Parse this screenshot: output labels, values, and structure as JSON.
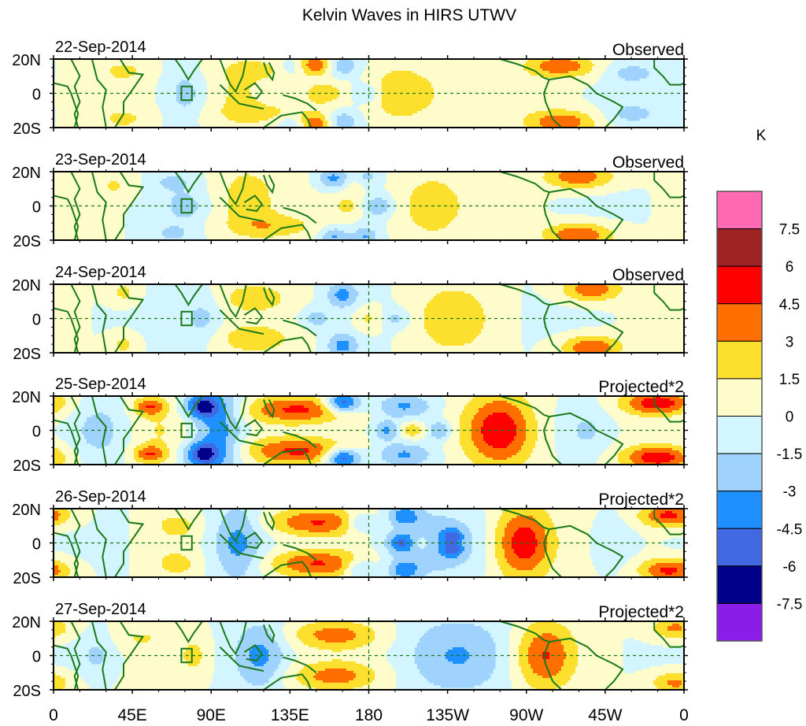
{
  "chart_data": {
    "type": "heatmap",
    "title": "Kelvin Waves in HIRS UTWV",
    "units_label": "K",
    "xlabel": "",
    "ylabel": "",
    "x_range_deg_lon": [
      0,
      360
    ],
    "y_range_deg_lat": [
      -20,
      20
    ],
    "x_tick_labels": [
      "0",
      "45E",
      "90E",
      "135E",
      "180",
      "135W",
      "90W",
      "45W",
      "0"
    ],
    "x_tick_values": [
      0,
      45,
      90,
      135,
      180,
      225,
      270,
      315,
      360
    ],
    "y_tick_labels": [
      "20N",
      "0",
      "20S"
    ],
    "y_tick_values": [
      20,
      0,
      -20
    ],
    "reference_lines": {
      "equator_dashed": true,
      "dateline_dashed": true
    },
    "colorbar": {
      "levels": [
        -7.5,
        -6,
        -4.5,
        -3,
        -1.5,
        0,
        1.5,
        3,
        4.5,
        6,
        7.5
      ],
      "level_labels": [
        "-7.5",
        "-6",
        "-4.5",
        "-3",
        "-1.5",
        "0",
        "1.5",
        "3",
        "4.5",
        "6",
        "7.5"
      ],
      "colors_low_to_high": [
        "#8a1ee8",
        "#00008b",
        "#4169e1",
        "#1e90ff",
        "#9fd2fc",
        "#d3f5ff",
        "#fffccb",
        "#fde02e",
        "#ff6f00",
        "#ff0000",
        "#a02323",
        "#ff69b4"
      ]
    },
    "coastline_color": "#1a7a1a",
    "panels": [
      {
        "date": "22-Sep-2014",
        "label": "Observed",
        "features": [
          {
            "lon": 155,
            "lat": 0,
            "amp": 2.0,
            "sx": 9,
            "sy": 5
          },
          {
            "lon": 178,
            "lat": 0,
            "amp": -2.4,
            "sx": 6,
            "sy": 4
          },
          {
            "lon": 197,
            "lat": 0,
            "amp": 2.8,
            "sx": 12,
            "sy": 12
          },
          {
            "lon": 230,
            "lat": 8,
            "amp": 1.2,
            "sx": 18,
            "sy": 8
          },
          {
            "lon": 230,
            "lat": -8,
            "amp": 1.2,
            "sx": 18,
            "sy": 8
          },
          {
            "lon": 105,
            "lat": 0,
            "amp": 2.0,
            "sx": 10,
            "sy": 12
          },
          {
            "lon": 120,
            "lat": -12,
            "amp": 1.8,
            "sx": 20,
            "sy": 5
          },
          {
            "lon": 120,
            "lat": 14,
            "amp": 1.8,
            "sx": 18,
            "sy": 5
          },
          {
            "lon": 75,
            "lat": 0,
            "amp": -2.0,
            "sx": 6,
            "sy": 8
          },
          {
            "lon": 150,
            "lat": 17,
            "amp": 4.0,
            "sx": 6,
            "sy": 4
          },
          {
            "lon": 150,
            "lat": -18,
            "amp": 4.0,
            "sx": 6,
            "sy": 4
          },
          {
            "lon": 165,
            "lat": 16,
            "amp": -2.6,
            "sx": 7,
            "sy": 5
          },
          {
            "lon": 165,
            "lat": -16,
            "amp": -2.6,
            "sx": 7,
            "sy": 5
          },
          {
            "lon": 135,
            "lat": 15,
            "amp": -2.0,
            "sx": 6,
            "sy": 4
          },
          {
            "lon": 135,
            "lat": -18,
            "amp": -2.0,
            "sx": 6,
            "sy": 4
          },
          {
            "lon": 290,
            "lat": 16,
            "amp": 4.0,
            "sx": 14,
            "sy": 5
          },
          {
            "lon": 290,
            "lat": -17,
            "amp": 4.2,
            "sx": 14,
            "sy": 5
          },
          {
            "lon": 40,
            "lat": 13,
            "amp": 2.0,
            "sx": 8,
            "sy": 4
          },
          {
            "lon": 40,
            "lat": -15,
            "amp": 2.0,
            "sx": 8,
            "sy": 4
          },
          {
            "lon": 330,
            "lat": 12,
            "amp": -2.0,
            "sx": 10,
            "sy": 4
          },
          {
            "lon": 330,
            "lat": -12,
            "amp": -2.0,
            "sx": 10,
            "sy": 4
          }
        ]
      },
      {
        "date": "23-Sep-2014",
        "label": "Observed",
        "features": [
          {
            "lon": 168,
            "lat": 0,
            "amp": 2.0,
            "sx": 7,
            "sy": 5
          },
          {
            "lon": 185,
            "lat": 0,
            "amp": -2.8,
            "sx": 6,
            "sy": 4
          },
          {
            "lon": 215,
            "lat": 0,
            "amp": 2.6,
            "sx": 14,
            "sy": 14
          },
          {
            "lon": 110,
            "lat": 5,
            "amp": 2.2,
            "sx": 12,
            "sy": 14
          },
          {
            "lon": 125,
            "lat": -12,
            "amp": 2.2,
            "sx": 18,
            "sy": 5
          },
          {
            "lon": 75,
            "lat": 0,
            "amp": -2.0,
            "sx": 8,
            "sy": 6
          },
          {
            "lon": 68,
            "lat": 14,
            "amp": -1.8,
            "sx": 8,
            "sy": 4
          },
          {
            "lon": 68,
            "lat": -16,
            "amp": -1.8,
            "sx": 8,
            "sy": 4
          },
          {
            "lon": 160,
            "lat": 16,
            "amp": -3.5,
            "sx": 6,
            "sy": 4
          },
          {
            "lon": 160,
            "lat": -18,
            "amp": -3.2,
            "sx": 6,
            "sy": 4
          },
          {
            "lon": 178,
            "lat": 16,
            "amp": -3.0,
            "sx": 5,
            "sy": 4
          },
          {
            "lon": 178,
            "lat": -18,
            "amp": -3.0,
            "sx": 5,
            "sy": 4
          },
          {
            "lon": 175,
            "lat": 14,
            "amp": 2.0,
            "sx": 6,
            "sy": 4
          },
          {
            "lon": 300,
            "lat": 17,
            "amp": 4.3,
            "sx": 14,
            "sy": 5
          },
          {
            "lon": 300,
            "lat": -17,
            "amp": 4.6,
            "sx": 14,
            "sy": 5
          },
          {
            "lon": 35,
            "lat": 12,
            "amp": 1.6,
            "sx": 8,
            "sy": 5
          }
        ]
      },
      {
        "date": "24-Sep-2014",
        "label": "Observed",
        "features": [
          {
            "lon": 180,
            "lat": 0,
            "amp": 2.0,
            "sx": 6,
            "sy": 5
          },
          {
            "lon": 195,
            "lat": 0,
            "amp": -2.0,
            "sx": 6,
            "sy": 4
          },
          {
            "lon": 228,
            "lat": 0,
            "amp": 2.6,
            "sx": 15,
            "sy": 14
          },
          {
            "lon": 115,
            "lat": 12,
            "amp": 2.4,
            "sx": 14,
            "sy": 6
          },
          {
            "lon": 115,
            "lat": -12,
            "amp": 2.4,
            "sx": 16,
            "sy": 6
          },
          {
            "lon": 85,
            "lat": 0,
            "amp": -2.0,
            "sx": 8,
            "sy": 10
          },
          {
            "lon": 165,
            "lat": 14,
            "amp": -3.5,
            "sx": 6,
            "sy": 5
          },
          {
            "lon": 165,
            "lat": -16,
            "amp": -3.5,
            "sx": 6,
            "sy": 5
          },
          {
            "lon": 150,
            "lat": 0,
            "amp": -2.0,
            "sx": 6,
            "sy": 4
          },
          {
            "lon": 307,
            "lat": 17,
            "amp": 4.3,
            "sx": 12,
            "sy": 5
          },
          {
            "lon": 307,
            "lat": -17,
            "amp": 4.6,
            "sx": 12,
            "sy": 5
          },
          {
            "lon": 40,
            "lat": 15,
            "amp": 2.0,
            "sx": 6,
            "sy": 5
          },
          {
            "lon": 40,
            "lat": -15,
            "amp": 2.0,
            "sx": 6,
            "sy": 5
          }
        ]
      },
      {
        "date": "25-Sep-2014",
        "label": "Projected*2",
        "features": [
          {
            "lon": 255,
            "lat": 0,
            "amp": 6.0,
            "sx": 14,
            "sy": 15
          },
          {
            "lon": 205,
            "lat": 0,
            "amp": 2.4,
            "sx": 5,
            "sy": 3
          },
          {
            "lon": 190,
            "lat": 0,
            "amp": -3.5,
            "sx": 5,
            "sy": 4
          },
          {
            "lon": 220,
            "lat": 0,
            "amp": -3.5,
            "sx": 5,
            "sy": 4
          },
          {
            "lon": 200,
            "lat": 14,
            "amp": -3.5,
            "sx": 12,
            "sy": 5
          },
          {
            "lon": 200,
            "lat": -14,
            "amp": -3.5,
            "sx": 12,
            "sy": 5
          },
          {
            "lon": 140,
            "lat": 12,
            "amp": 5.0,
            "sx": 22,
            "sy": 6
          },
          {
            "lon": 140,
            "lat": -12,
            "amp": 5.0,
            "sx": 22,
            "sy": 6
          },
          {
            "lon": 165,
            "lat": 16,
            "amp": -6.5,
            "sx": 7,
            "sy": 4
          },
          {
            "lon": 165,
            "lat": -16,
            "amp": -6.5,
            "sx": 7,
            "sy": 4
          },
          {
            "lon": 95,
            "lat": 0,
            "amp": -4.0,
            "sx": 10,
            "sy": 20
          },
          {
            "lon": 85,
            "lat": 14,
            "amp": -5.5,
            "sx": 7,
            "sy": 5
          },
          {
            "lon": 85,
            "lat": -14,
            "amp": -5.5,
            "sx": 7,
            "sy": 5
          },
          {
            "lon": 55,
            "lat": 14,
            "amp": 4.5,
            "sx": 7,
            "sy": 4
          },
          {
            "lon": 55,
            "lat": -14,
            "amp": 4.5,
            "sx": 7,
            "sy": 4
          },
          {
            "lon": 60,
            "lat": 0,
            "amp": 1.6,
            "sx": 10,
            "sy": 8
          },
          {
            "lon": 345,
            "lat": 16,
            "amp": 5.5,
            "sx": 14,
            "sy": 5
          },
          {
            "lon": 345,
            "lat": -16,
            "amp": 5.5,
            "sx": 14,
            "sy": 5
          },
          {
            "lon": 305,
            "lat": 0,
            "amp": -1.8,
            "sx": 10,
            "sy": 10
          },
          {
            "lon": 25,
            "lat": 0,
            "amp": -1.8,
            "sx": 10,
            "sy": 12
          }
        ]
      },
      {
        "date": "26-Sep-2014",
        "label": "Projected*2",
        "features": [
          {
            "lon": 268,
            "lat": 0,
            "amp": 5.8,
            "sx": 12,
            "sy": 15
          },
          {
            "lon": 215,
            "lat": 0,
            "amp": -3.0,
            "sx": 20,
            "sy": 14
          },
          {
            "lon": 198,
            "lat": 0,
            "amp": -3.4,
            "sx": 5,
            "sy": 4
          },
          {
            "lon": 228,
            "lat": 4,
            "amp": -3.4,
            "sx": 4,
            "sy": 3
          },
          {
            "lon": 228,
            "lat": -4,
            "amp": -3.4,
            "sx": 4,
            "sy": 3
          },
          {
            "lon": 210,
            "lat": 0,
            "amp": 1.8,
            "sx": 4,
            "sy": 4
          },
          {
            "lon": 150,
            "lat": 12,
            "amp": 4.8,
            "sx": 20,
            "sy": 6
          },
          {
            "lon": 150,
            "lat": -12,
            "amp": 4.8,
            "sx": 20,
            "sy": 6
          },
          {
            "lon": 105,
            "lat": 0,
            "amp": -3.6,
            "sx": 10,
            "sy": 16
          },
          {
            "lon": 70,
            "lat": 10,
            "amp": 2.2,
            "sx": 8,
            "sy": 5
          },
          {
            "lon": 70,
            "lat": -12,
            "amp": 2.2,
            "sx": 8,
            "sy": 5
          },
          {
            "lon": 175,
            "lat": 12,
            "amp": -3.2,
            "sx": 6,
            "sy": 4
          },
          {
            "lon": 175,
            "lat": -15,
            "amp": -3.2,
            "sx": 6,
            "sy": 4
          },
          {
            "lon": 200,
            "lat": 16,
            "amp": -3.6,
            "sx": 6,
            "sy": 4
          },
          {
            "lon": 200,
            "lat": -16,
            "amp": -3.6,
            "sx": 6,
            "sy": 4
          },
          {
            "lon": 352,
            "lat": 16,
            "amp": 5.0,
            "sx": 12,
            "sy": 5
          },
          {
            "lon": 352,
            "lat": -16,
            "amp": 5.0,
            "sx": 12,
            "sy": 5
          },
          {
            "lon": 320,
            "lat": 0,
            "amp": -1.8,
            "sx": 8,
            "sy": 10
          }
        ]
      },
      {
        "date": "27-Sep-2014",
        "label": "Projected*2",
        "features": [
          {
            "lon": 280,
            "lat": 0,
            "amp": 4.5,
            "sx": 12,
            "sy": 14
          },
          {
            "lon": 230,
            "lat": 0,
            "amp": -2.8,
            "sx": 22,
            "sy": 16
          },
          {
            "lon": 160,
            "lat": 12,
            "amp": 3.6,
            "sx": 18,
            "sy": 6
          },
          {
            "lon": 160,
            "lat": -12,
            "amp": 3.6,
            "sx": 18,
            "sy": 6
          },
          {
            "lon": 118,
            "lat": 0,
            "amp": -3.2,
            "sx": 10,
            "sy": 14
          },
          {
            "lon": 80,
            "lat": 0,
            "amp": 2.0,
            "sx": 6,
            "sy": 8
          },
          {
            "lon": 50,
            "lat": 10,
            "amp": 1.4,
            "sx": 10,
            "sy": 5
          },
          {
            "lon": 355,
            "lat": 16,
            "amp": 3.5,
            "sx": 10,
            "sy": 5
          },
          {
            "lon": 355,
            "lat": -16,
            "amp": 3.5,
            "sx": 10,
            "sy": 5
          },
          {
            "lon": 25,
            "lat": 0,
            "amp": -1.8,
            "sx": 8,
            "sy": 8
          }
        ]
      }
    ]
  }
}
